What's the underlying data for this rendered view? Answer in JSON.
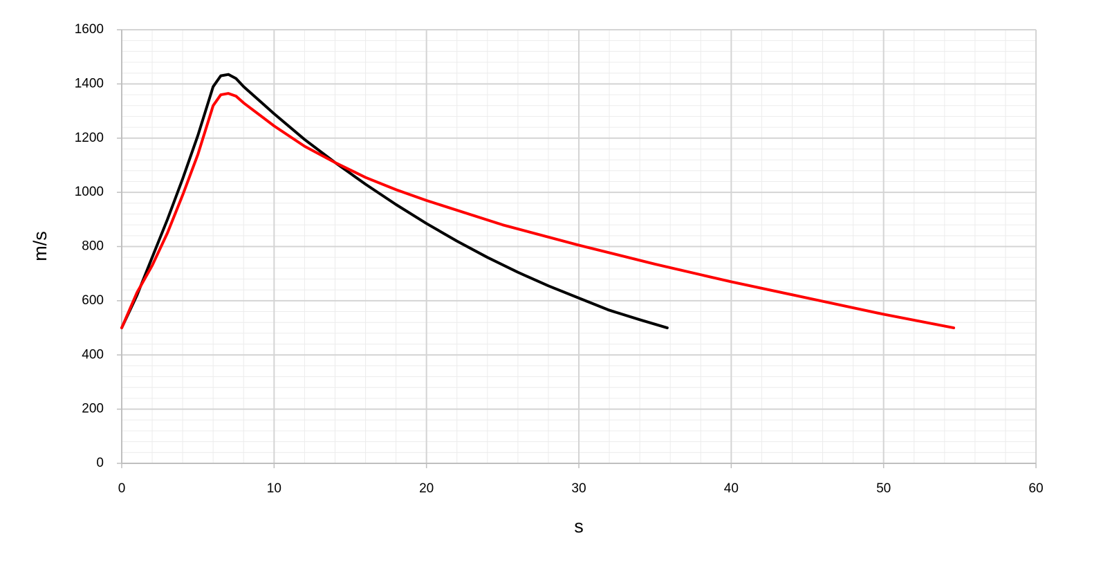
{
  "chart_data": {
    "type": "line",
    "x_label": "s",
    "y_label": "m/s",
    "xlim": [
      0,
      60
    ],
    "xticks": [
      0,
      10,
      20,
      30,
      40,
      50,
      60
    ],
    "ylim": [
      0,
      1600
    ],
    "yticks": [
      0,
      200,
      400,
      600,
      800,
      1000,
      1200,
      1400,
      1600
    ],
    "xminorticks": [
      0,
      2,
      4,
      6,
      8,
      10,
      12,
      14,
      16,
      18,
      20,
      22,
      24,
      26,
      28,
      30,
      32,
      34,
      36,
      38,
      40,
      42,
      44,
      46,
      48,
      50,
      52,
      54,
      56,
      58,
      60
    ],
    "yminorticks": [
      0,
      40,
      80,
      120,
      160,
      200,
      240,
      280,
      320,
      360,
      400,
      440,
      480,
      520,
      560,
      600,
      640,
      680,
      720,
      760,
      800,
      840,
      880,
      920,
      960,
      1000,
      1040,
      1080,
      1120,
      1160,
      1200,
      1240,
      1280,
      1320,
      1360,
      1400,
      1440,
      1480,
      1520,
      1560,
      1600
    ],
    "grid": true,
    "minor_grid": true,
    "series": [
      {
        "color": "#000000",
        "x": [
          0,
          1,
          2,
          3,
          4,
          5,
          6,
          6.5,
          7,
          7.5,
          8,
          10,
          12,
          14,
          16,
          18,
          20,
          22,
          24,
          26,
          28,
          30,
          32,
          34,
          35.8
        ],
        "values": [
          500,
          620,
          760,
          900,
          1050,
          1210,
          1390,
          1430,
          1435,
          1420,
          1390,
          1290,
          1195,
          1110,
          1030,
          955,
          885,
          820,
          760,
          705,
          655,
          610,
          565,
          530,
          500
        ]
      },
      {
        "color": "#ff0000",
        "x": [
          0,
          1,
          2,
          3,
          4,
          5,
          6,
          6.5,
          7,
          7.5,
          8,
          10,
          12,
          14,
          16,
          18,
          20,
          25,
          30,
          35,
          40,
          45,
          50,
          54.6
        ],
        "values": [
          500,
          630,
          730,
          850,
          990,
          1140,
          1320,
          1360,
          1365,
          1355,
          1330,
          1245,
          1170,
          1110,
          1055,
          1010,
          970,
          880,
          805,
          735,
          670,
          610,
          550,
          500
        ]
      }
    ]
  }
}
